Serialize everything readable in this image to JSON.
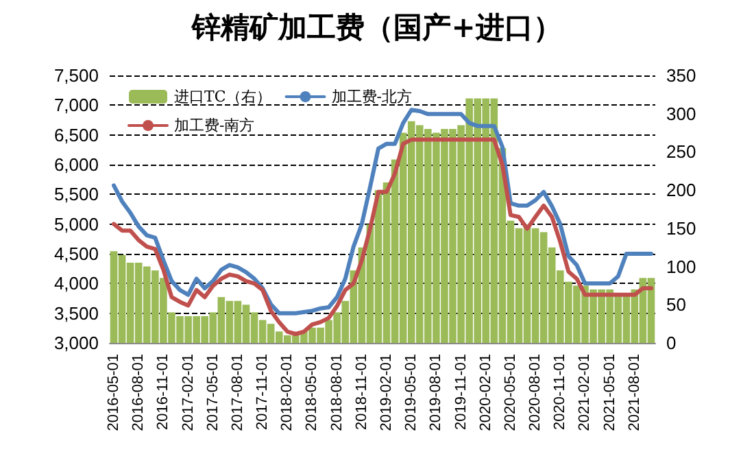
{
  "chart_data": {
    "type": "line",
    "title": "锌精矿加工费（国产+进口）",
    "categories": [
      "2016-05-01",
      null,
      null,
      "2016-08-01",
      null,
      null,
      "2016-11-01",
      null,
      null,
      "2017-02-01",
      null,
      null,
      "2017-05-01",
      null,
      null,
      "2017-08-01",
      null,
      null,
      "2017-11-01",
      null,
      null,
      "2018-02-01",
      null,
      null,
      "2018-05-01",
      null,
      null,
      "2018-08-01",
      null,
      null,
      "2018-11-01",
      null,
      null,
      "2019-02-01",
      null,
      null,
      "2019-05-01",
      null,
      null,
      "2019-08-01",
      null,
      null,
      "2019-11-01",
      null,
      null,
      "2020-02-01",
      null,
      null,
      "2020-05-01",
      null,
      null,
      "2020-08-01",
      null,
      null,
      "2020-11-01",
      null,
      null,
      "2021-02-01",
      null,
      null,
      "2021-05-01",
      null,
      null,
      "2021-08-01",
      null,
      null
    ],
    "series": [
      {
        "name": "进口TC（右）",
        "type": "bar",
        "axis": "y2",
        "color": "#9bbb59",
        "values": [
          120,
          115,
          105,
          105,
          100,
          95,
          85,
          40,
          35,
          35,
          35,
          35,
          40,
          60,
          55,
          55,
          50,
          40,
          30,
          25,
          15,
          10,
          10,
          15,
          20,
          20,
          30,
          40,
          55,
          95,
          125,
          155,
          200,
          210,
          240,
          275,
          290,
          285,
          280,
          275,
          280,
          280,
          285,
          320,
          320,
          320,
          320,
          255,
          160,
          150,
          155,
          150,
          145,
          125,
          95,
          80,
          75,
          75,
          70,
          70,
          70,
          65,
          65,
          70,
          85,
          85
        ]
      },
      {
        "name": "加工费-北方",
        "color": "#4f81bd",
        "values": [
          5650,
          5380,
          5190,
          4960,
          4810,
          4770,
          4390,
          4040,
          3890,
          3810,
          4080,
          3920,
          4040,
          4230,
          4310,
          4270,
          4190,
          4080,
          3920,
          3650,
          3500,
          3500,
          3500,
          3520,
          3540,
          3580,
          3600,
          3770,
          4080,
          4620,
          5000,
          5620,
          6270,
          6350,
          6350,
          6700,
          6920,
          6900,
          6850,
          6850,
          6850,
          6850,
          6850,
          6700,
          6650,
          6650,
          6650,
          6300,
          5350,
          5310,
          5310,
          5400,
          5540,
          5300,
          5000,
          4460,
          4310,
          4000,
          4000,
          4000,
          4000,
          4120,
          4500,
          4500,
          4500,
          4500
        ]
      },
      {
        "name": "加工费-南方",
        "color": "#c0504d",
        "values": [
          5000,
          4890,
          4890,
          4730,
          4620,
          4580,
          4230,
          3770,
          3690,
          3630,
          3890,
          3770,
          3960,
          4080,
          4150,
          4120,
          4040,
          4000,
          3890,
          3540,
          3350,
          3190,
          3150,
          3190,
          3310,
          3350,
          3420,
          3620,
          3890,
          4000,
          4390,
          4920,
          5540,
          5540,
          5850,
          6350,
          6420,
          6420,
          6420,
          6420,
          6420,
          6420,
          6420,
          6420,
          6420,
          6420,
          6420,
          6000,
          5150,
          5120,
          4920,
          5120,
          5310,
          5120,
          4700,
          4200,
          4080,
          3810,
          3810,
          3810,
          3810,
          3810,
          3810,
          3810,
          3920,
          3920
        ]
      }
    ],
    "ylim": [
      3000,
      7500
    ],
    "yticks": [
      {
        "value": 3000,
        "label": "3,000"
      },
      {
        "value": 3500,
        "label": "3,500"
      },
      {
        "value": 4000,
        "label": "4,000"
      },
      {
        "value": 4500,
        "label": "4,500"
      },
      {
        "value": 5000,
        "label": "5,000"
      },
      {
        "value": 5500,
        "label": "5,500"
      },
      {
        "value": 6000,
        "label": "6,000"
      },
      {
        "value": 6500,
        "label": "6,500"
      },
      {
        "value": 7000,
        "label": "7,000"
      },
      {
        "value": 7500,
        "label": "7,500"
      }
    ],
    "y2lim": [
      0,
      350
    ],
    "y2ticks": [
      0,
      50,
      100,
      150,
      200,
      250,
      300,
      350
    ],
    "grid": "y",
    "legend": "top left",
    "marker": "none",
    "line_style": "solid"
  }
}
